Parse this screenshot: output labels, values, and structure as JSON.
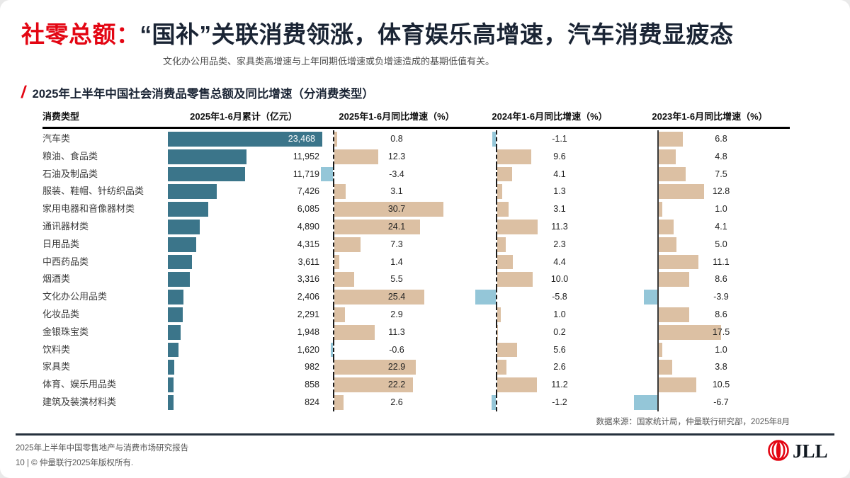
{
  "header": {
    "title_prefix": "社零总额：",
    "title_main": "“国补”关联消费领涨，体育娱乐高增速，汽车消费显疲态",
    "subtitle": "文化办公用品类、家具类高增速与上年同期低增速或负增速造成的基期低值有关。"
  },
  "chart": {
    "title": "2025年上半年中国社会消费品零售总额及同比增速（分消费类型）",
    "columns": [
      "消费类型",
      "2025年1-6月累计（亿元）",
      "2025年1-6月同比增速（%）",
      "2024年1-6月同比增速（%）",
      "2023年1-6月同比增速（%）"
    ],
    "source": "数据来源：国家统计局，仲量联行研究部，2025年8月"
  },
  "chart_data": {
    "type": "bar",
    "title": "2025年上半年中国社会消费品零售总额及同比增速（分消费类型）",
    "categories": [
      "汽车类",
      "粮油、食品类",
      "石油及制品类",
      "服装、鞋帽、针纺织品类",
      "家用电器和音像器材类",
      "通讯器材类",
      "日用品类",
      "中西药品类",
      "烟酒类",
      "文化办公用品类",
      "化妆品类",
      "金银珠宝类",
      "饮料类",
      "家具类",
      "体育、娱乐用品类",
      "建筑及装潢材料类"
    ],
    "series": [
      {
        "name": "2025年1-6月累计（亿元）",
        "values": [
          23468,
          11952,
          11719,
          7426,
          6085,
          4890,
          4315,
          3611,
          3316,
          2406,
          2291,
          1948,
          1620,
          982,
          858,
          824
        ]
      },
      {
        "name": "2025年1-6月同比增速（%）",
        "values": [
          0.8,
          12.3,
          -3.4,
          3.1,
          30.7,
          24.1,
          7.3,
          1.4,
          5.5,
          25.4,
          2.9,
          11.3,
          -0.6,
          22.9,
          22.2,
          2.6
        ]
      },
      {
        "name": "2024年1-6月同比增速（%）",
        "values": [
          -1.1,
          9.6,
          4.1,
          1.3,
          3.1,
          11.3,
          2.3,
          4.4,
          10.0,
          -5.8,
          1.0,
          0.2,
          5.6,
          2.6,
          11.2,
          -1.2
        ]
      },
      {
        "name": "2023年1-6月同比增速（%）",
        "values": [
          6.8,
          4.8,
          7.5,
          12.8,
          1.0,
          4.1,
          5.0,
          11.1,
          8.6,
          -3.9,
          8.6,
          17.5,
          1.0,
          3.8,
          10.5,
          -6.7
        ]
      }
    ],
    "layout_hints": {
      "orientation": "horizontal",
      "grid": false,
      "axis_style": [
        "dashed",
        "dashed",
        "solid"
      ]
    }
  },
  "footer": {
    "line1": "2025年上半年中国零售地产与消费市场研究报告",
    "line2": "10 | © 仲量联行2025年版权所有.",
    "logo_text": "JLL"
  },
  "colors": {
    "teal": "#3B758A",
    "tan": "#DCC0A3",
    "light_blue": "#94C6D8",
    "red": "#E30613",
    "dark": "#1A2434"
  }
}
